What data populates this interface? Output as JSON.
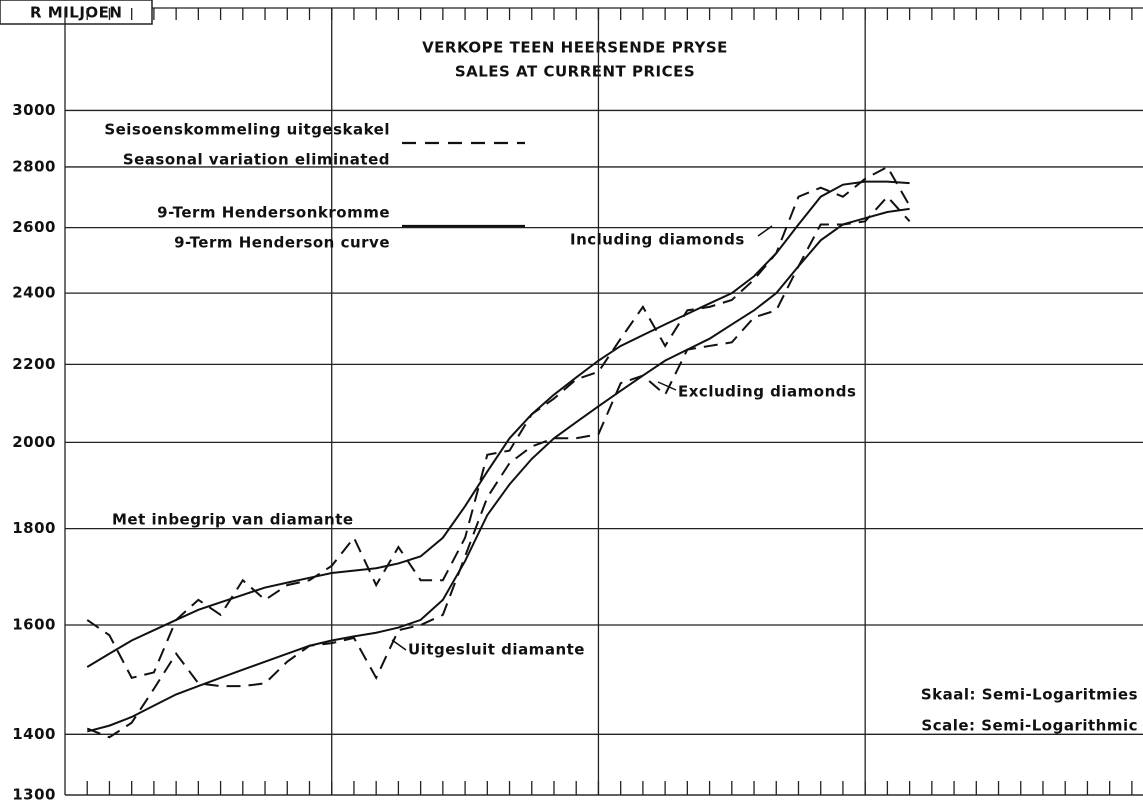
{
  "chart_data": {
    "type": "line",
    "title": [
      "VERKOPE TEEN HEERSENDE PRYSE",
      "SALES AT CURRENT PRICES"
    ],
    "y_unit": "R MILJOEN",
    "log_y": true,
    "ylim": [
      1300,
      3400
    ],
    "yticks": [
      1300,
      1400,
      1600,
      1800,
      2000,
      2200,
      2400,
      2600,
      2800,
      3000
    ],
    "xlim": [
      0,
      48.5
    ],
    "xticks": [
      12,
      24,
      36
    ],
    "color": "#111111",
    "legend": [
      {
        "labels": [
          "Seisoenskommeling uitgeskakel",
          "Seasonal variation eliminated"
        ],
        "dashed": true
      },
      {
        "labels": [
          "9-Term Hendersonkromme",
          "9-Term Henderson curve"
        ],
        "dashed": false
      }
    ],
    "x": [
      1,
      2,
      3,
      4,
      5,
      6,
      7,
      8,
      9,
      10,
      11,
      12,
      13,
      14,
      15,
      16,
      17,
      18,
      19,
      20,
      21,
      22,
      23,
      24,
      25,
      26,
      27,
      28,
      29,
      30,
      31,
      32,
      33,
      34,
      35,
      36,
      37,
      38
    ],
    "groups": [
      {
        "names": [
          "Met inbegrip van diamante",
          "Including diamonds"
        ],
        "lines": [
          [
            1610,
            1580,
            1500,
            1510,
            1610,
            1650,
            1620,
            1690,
            1650,
            1680,
            1690,
            1720,
            1780,
            1680,
            1760,
            1690,
            1690,
            1780,
            1970,
            1980,
            2070,
            2110,
            2160,
            2180,
            2270,
            2360,
            2250,
            2350,
            2360,
            2380,
            2440,
            2520,
            2700,
            2730,
            2700,
            2760,
            2800,
            2670
          ],
          [
            1520,
            1545,
            1570,
            1590,
            1610,
            1630,
            1645,
            1660,
            1675,
            1685,
            1695,
            1705,
            1710,
            1715,
            1725,
            1740,
            1780,
            1850,
            1930,
            2010,
            2070,
            2120,
            2165,
            2210,
            2250,
            2280,
            2310,
            2340,
            2370,
            2400,
            2450,
            2520,
            2610,
            2700,
            2740,
            2750,
            2750,
            2745
          ]
        ]
      },
      {
        "names": [
          "Uitgesluit diamante",
          "Excluding diamonds"
        ],
        "lines": [
          [
            1410,
            1395,
            1420,
            1480,
            1545,
            1490,
            1485,
            1485,
            1490,
            1530,
            1560,
            1565,
            1575,
            1500,
            1590,
            1600,
            1620,
            1740,
            1870,
            1950,
            1990,
            2010,
            2010,
            2020,
            2150,
            2170,
            2120,
            2240,
            2250,
            2260,
            2330,
            2350,
            2480,
            2610,
            2610,
            2620,
            2700,
            2620
          ],
          [
            1405,
            1415,
            1430,
            1450,
            1470,
            1485,
            1500,
            1515,
            1530,
            1545,
            1560,
            1570,
            1578,
            1585,
            1595,
            1610,
            1650,
            1730,
            1830,
            1900,
            1960,
            2010,
            2050,
            2090,
            2130,
            2170,
            2210,
            2240,
            2270,
            2310,
            2350,
            2400,
            2480,
            2560,
            2610,
            2630,
            2650,
            2660
          ]
        ]
      }
    ],
    "annotations": [
      "Skaal: Semi-Logaritmies",
      "Scale: Semi-Logarithmic"
    ]
  }
}
